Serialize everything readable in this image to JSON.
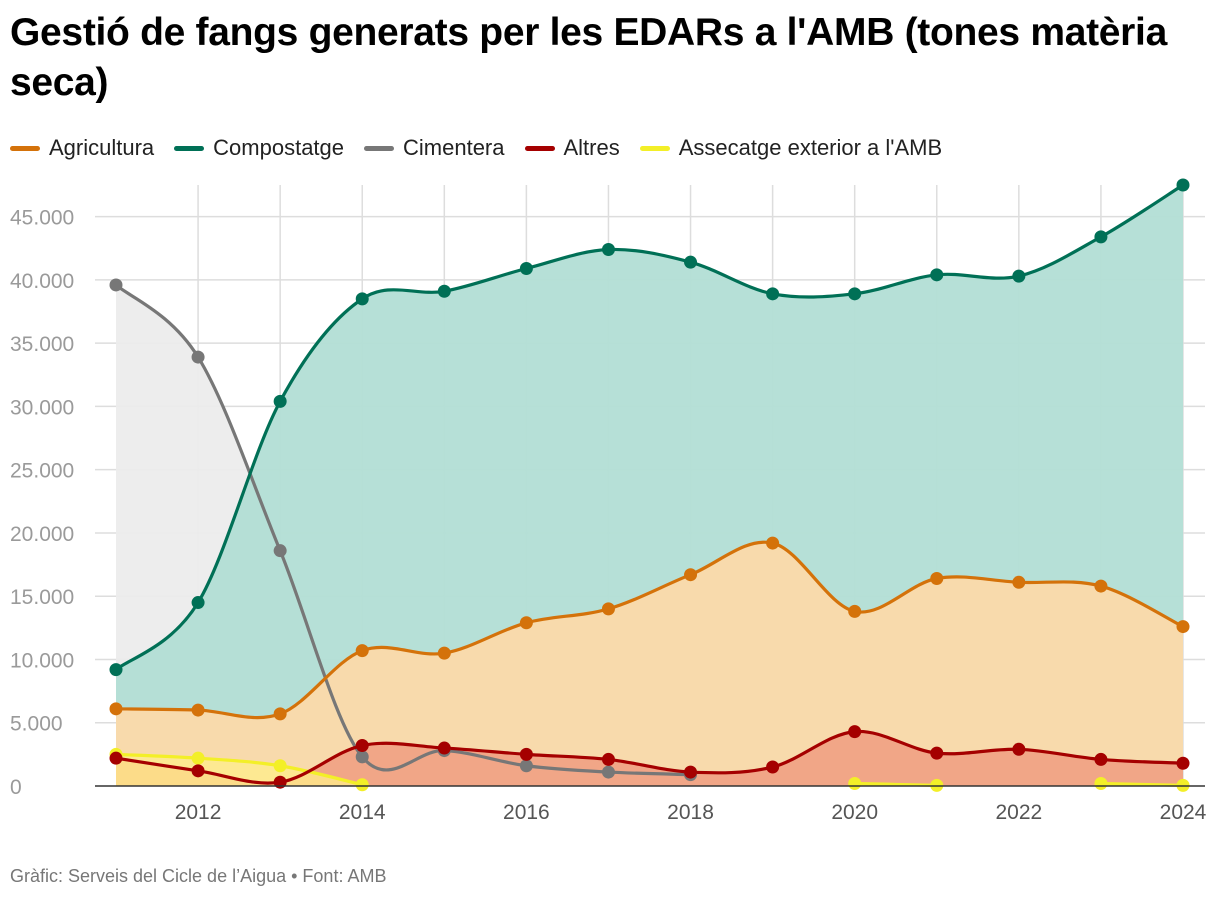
{
  "title": "Gestió de fangs generats per les EDARs a l'AMB (tones matèria seca)",
  "footer": {
    "source_text": "Gràfic: Serveis del Cicle de l’Aigua • Font: AMB"
  },
  "chart_data": {
    "type": "area",
    "title": "Gestió de fangs generats per les EDARs a l'AMB (tones matèria seca)",
    "xlabel": "",
    "ylabel": "",
    "x_range": [
      2011,
      2024
    ],
    "ylim": [
      0,
      47500
    ],
    "y_ticks": [
      0,
      5000,
      10000,
      15000,
      20000,
      25000,
      30000,
      35000,
      40000,
      45000
    ],
    "y_tick_labels": [
      "0",
      "5.000",
      "10.000",
      "15.000",
      "20.000",
      "25.000",
      "30.000",
      "35.000",
      "40.000",
      "45.000"
    ],
    "x_ticks": [
      2012,
      2014,
      2016,
      2018,
      2020,
      2022,
      2024
    ],
    "x_tick_labels": [
      "2012",
      "2014",
      "2016",
      "2018",
      "2020",
      "2022",
      "2024"
    ],
    "x_gridlines": [
      2012,
      2013,
      2014,
      2015,
      2016,
      2017,
      2018,
      2019,
      2020,
      2021,
      2022,
      2023,
      2024
    ],
    "grid": true,
    "legend_position": "top-left",
    "series": [
      {
        "name": "Agricultura",
        "color": "#d4720a",
        "fill": "#fcd9aa",
        "x": [
          2011,
          2012,
          2013,
          2014,
          2015,
          2016,
          2017,
          2018,
          2019,
          2020,
          2021,
          2022,
          2023,
          2024
        ],
        "values": [
          6100,
          6000,
          5700,
          10700,
          10500,
          12900,
          14000,
          16700,
          19200,
          13800,
          16400,
          16100,
          15800,
          12600
        ]
      },
      {
        "name": "Compostatge",
        "color": "#007056",
        "fill": "#b2ded5",
        "x": [
          2011,
          2012,
          2013,
          2014,
          2015,
          2016,
          2017,
          2018,
          2019,
          2020,
          2021,
          2022,
          2023,
          2024
        ],
        "values": [
          9200,
          14500,
          30400,
          38500,
          39100,
          40900,
          42400,
          41400,
          38900,
          38900,
          40400,
          40300,
          43400,
          47500
        ]
      },
      {
        "name": "Cimentera",
        "color": "#777777",
        "fill": "#ececec",
        "x": [
          2011,
          2012,
          2013,
          2014,
          2015,
          2016,
          2017,
          2018
        ],
        "values": [
          39600,
          33900,
          18600,
          2300,
          2800,
          1600,
          1100,
          900
        ]
      },
      {
        "name": "Altres",
        "color": "#a50000",
        "fill": "#f0a083",
        "x": [
          2011,
          2012,
          2013,
          2014,
          2015,
          2016,
          2017,
          2018,
          2019,
          2020,
          2021,
          2022,
          2023,
          2024
        ],
        "values": [
          2200,
          1200,
          300,
          3200,
          3000,
          2500,
          2100,
          1100,
          1500,
          4300,
          2600,
          2900,
          2100,
          1800
        ]
      },
      {
        "name": "Assecatge exterior a l'AMB",
        "color": "#f3ef28",
        "fill": "#ffee8a",
        "segments": [
          {
            "x": [
              2011,
              2012,
              2013,
              2014
            ],
            "values": [
              2500,
              2200,
              1600,
              100
            ]
          },
          {
            "x": [
              2020,
              2021
            ],
            "values": [
              200,
              50
            ]
          },
          {
            "x": [
              2023,
              2024
            ],
            "values": [
              200,
              50
            ]
          }
        ]
      }
    ]
  }
}
